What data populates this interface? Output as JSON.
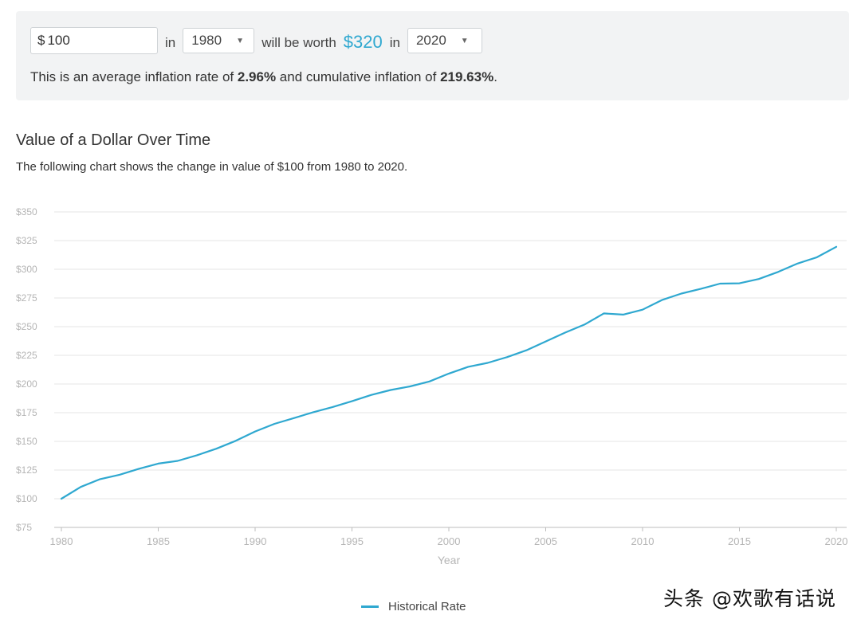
{
  "calculator": {
    "amount_prefix": "$",
    "amount_value": "100",
    "in_label": "in",
    "start_year": "1980",
    "will_be_worth_label": "will be worth",
    "worth_value": "$320",
    "in_label_2": "in",
    "end_year": "2020",
    "summary_prefix": "This is an average inflation rate of ",
    "avg_rate": "2.96%",
    "summary_mid": " and cumulative inflation of ",
    "cumulative": "219.63%",
    "summary_suffix": "."
  },
  "chart_title": "Value of a Dollar Over Time",
  "chart_subtitle": "The following chart shows the change in value of $100 from 1980 to 2020.",
  "watermark": "头条 @欢歌有话说",
  "colors": {
    "line": "#2fa8d0",
    "accent": "#2fa8d0",
    "panel": "#f2f3f4"
  },
  "chart_data": {
    "type": "line",
    "title": "",
    "xlabel": "Year",
    "ylabel": "",
    "xlim": [
      1980,
      2020
    ],
    "ylim": [
      75,
      350
    ],
    "x_ticks": [
      "1980",
      "1985",
      "1990",
      "1995",
      "2000",
      "2005",
      "2010",
      "2015",
      "2020"
    ],
    "y_ticks": [
      "$75",
      "$100",
      "$125",
      "$150",
      "$175",
      "$200",
      "$225",
      "$250",
      "$275",
      "$300",
      "$325",
      "$350"
    ],
    "grid": true,
    "legend_position": "bottom",
    "x": [
      1980,
      1981,
      1982,
      1983,
      1984,
      1985,
      1986,
      1987,
      1988,
      1989,
      1990,
      1991,
      1992,
      1993,
      1994,
      1995,
      1996,
      1997,
      1998,
      1999,
      2000,
      2001,
      2002,
      2003,
      2004,
      2005,
      2006,
      2007,
      2008,
      2009,
      2010,
      2011,
      2012,
      2013,
      2014,
      2015,
      2016,
      2017,
      2018,
      2019,
      2020
    ],
    "series": [
      {
        "name": "Historical Rate",
        "values": [
          100,
          110.3,
          117.1,
          120.9,
          126.1,
          130.6,
          133.0,
          137.9,
          143.6,
          150.5,
          158.6,
          165.3,
          170.3,
          175.4,
          179.9,
          185.0,
          190.5,
          194.8,
          197.9,
          202.2,
          209.1,
          215.0,
          218.4,
          223.4,
          229.4,
          237.1,
          244.8,
          251.8,
          261.5,
          260.5,
          264.8,
          273.2,
          278.8,
          282.9,
          287.5,
          287.8,
          291.5,
          297.7,
          305.0,
          310.5,
          319.6
        ]
      }
    ]
  }
}
